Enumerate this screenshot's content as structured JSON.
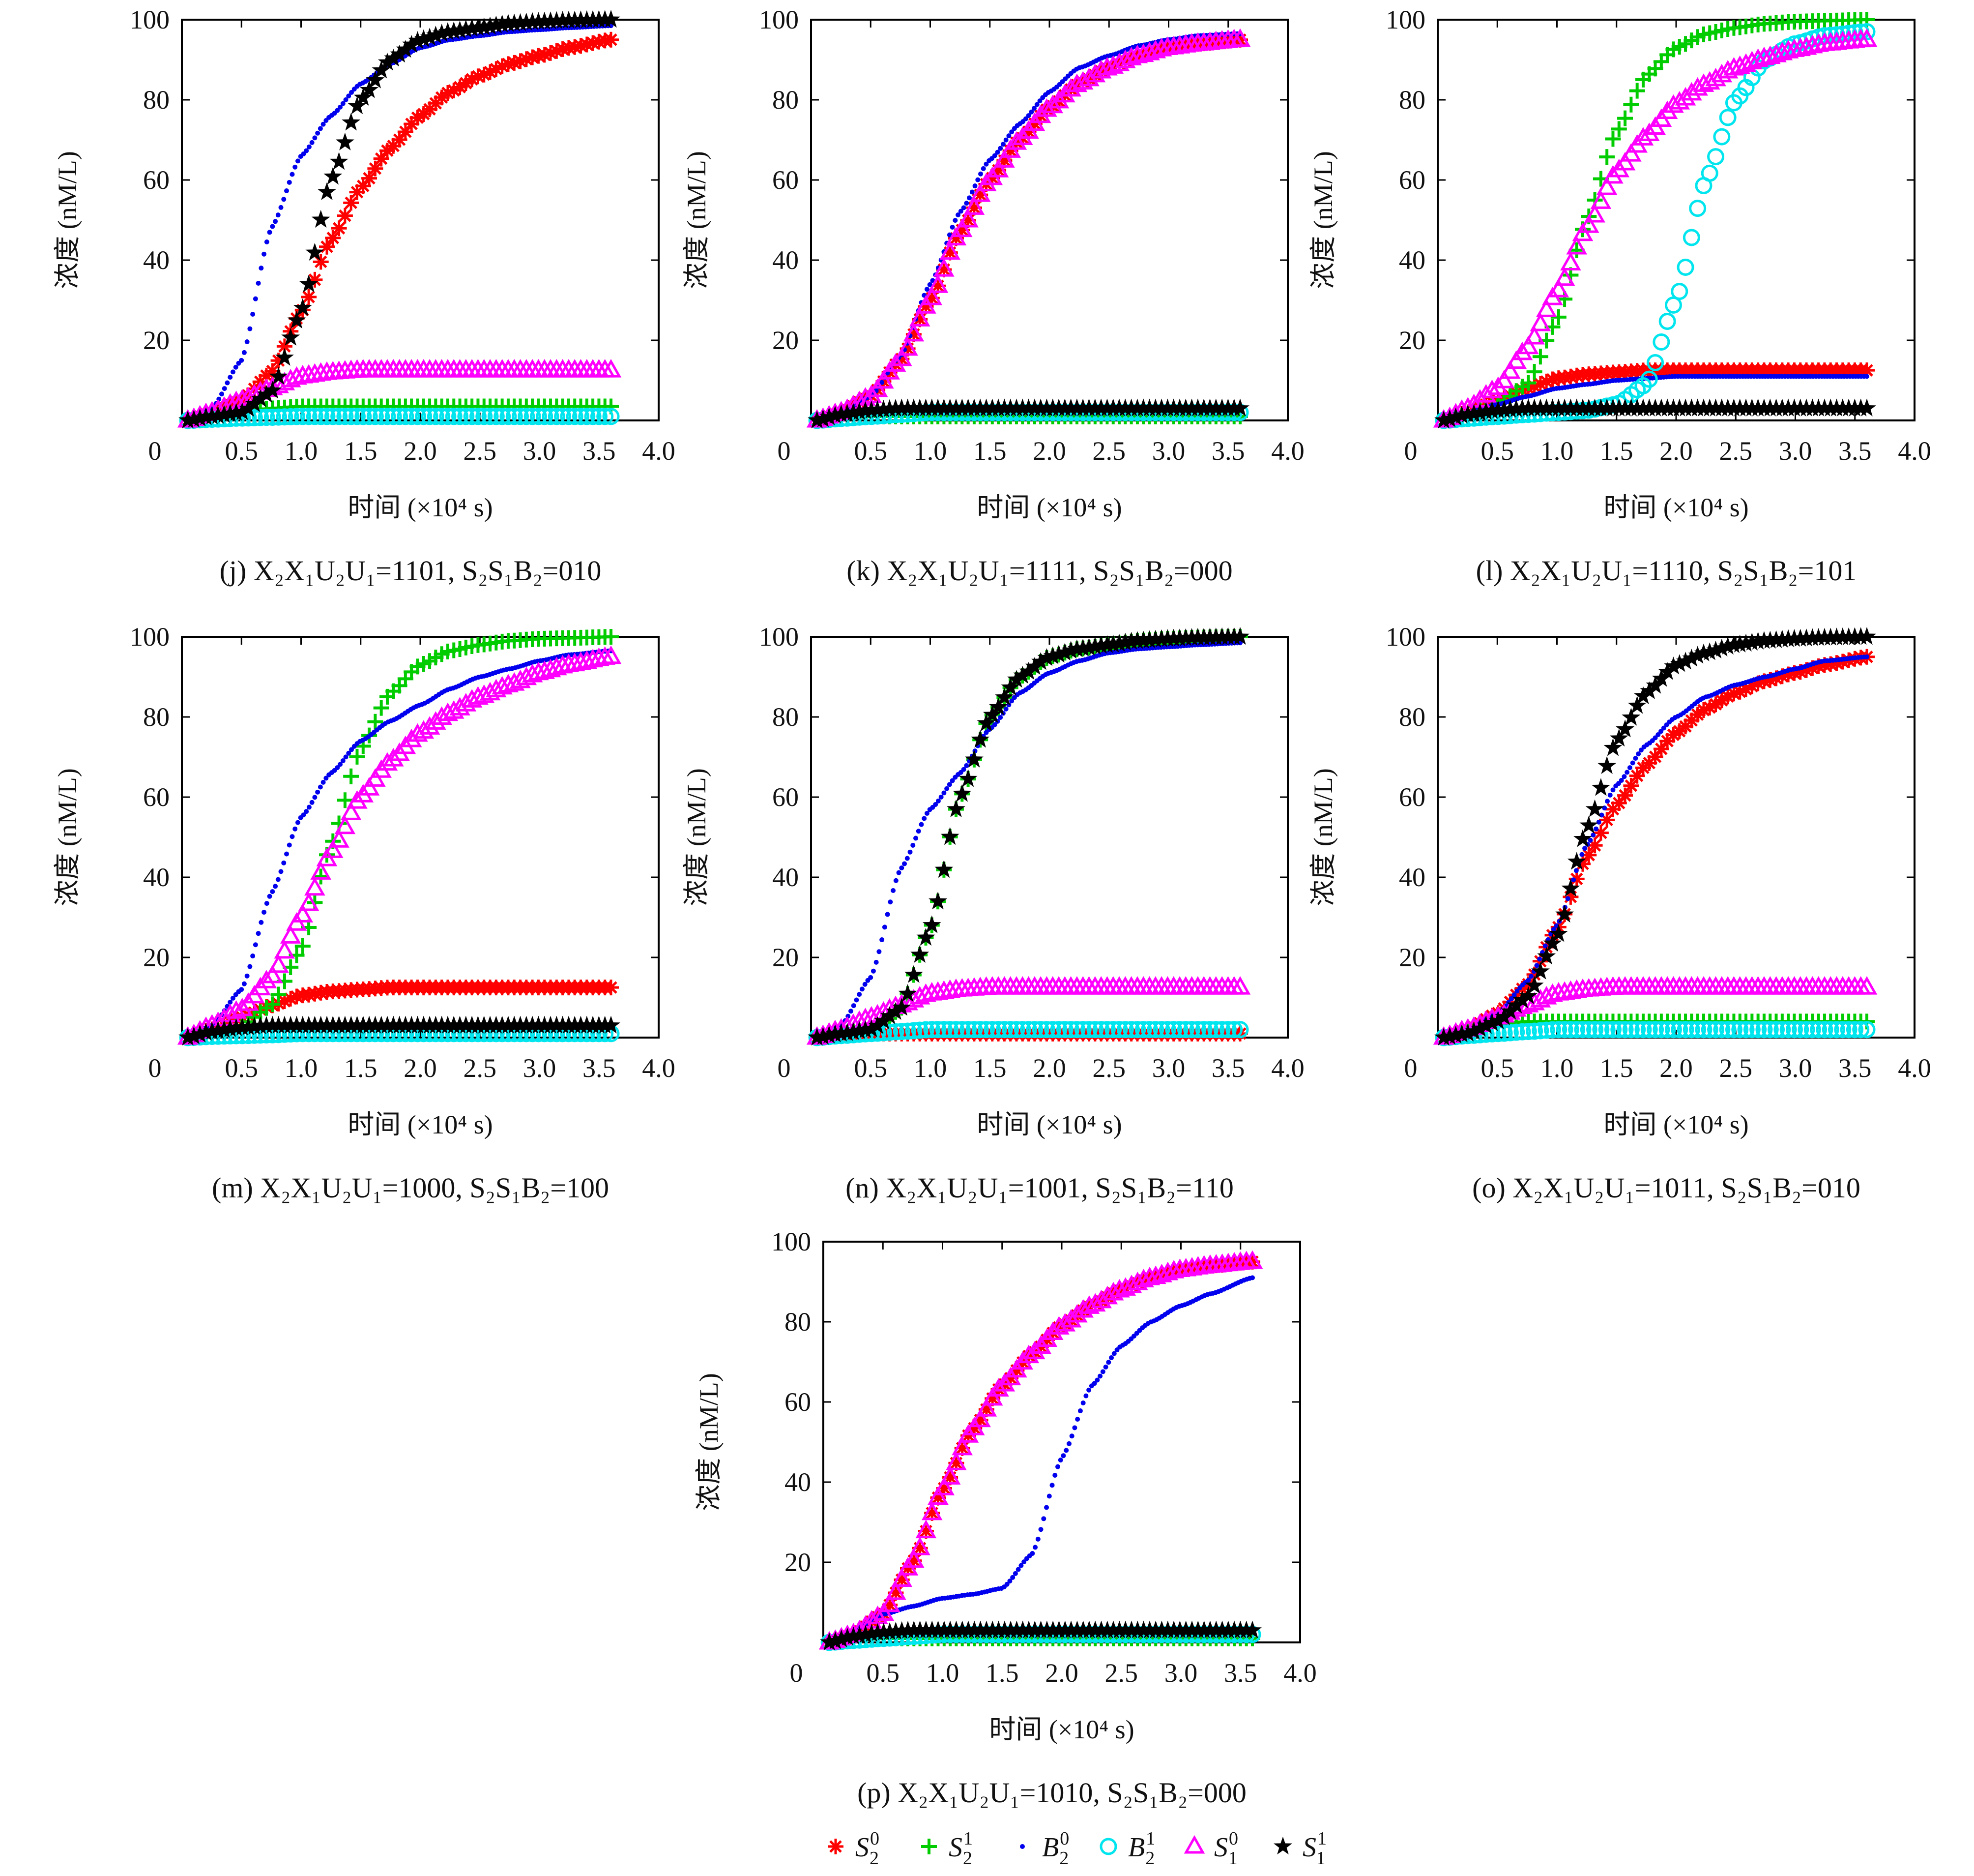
{
  "chart_data": [
    {
      "id": "j",
      "type": "line",
      "title": "(j) X₂X₁U₂U₁=1101, S₂S₁B₂=010",
      "xlabel": "时间 (×10⁴ s)",
      "ylabel": "浓度 (nM/L)",
      "xlim": [
        0,
        4.0
      ],
      "ylim": [
        0,
        100
      ],
      "xticks": [
        "0",
        "0.5",
        "1.0",
        "1.5",
        "2.0",
        "2.5",
        "3.0",
        "3.5",
        "4.0"
      ],
      "yticks": [
        "20",
        "40",
        "60",
        "80",
        "100"
      ],
      "x": [
        0.05,
        0.25,
        0.5,
        0.75,
        1.0,
        1.25,
        1.5,
        1.75,
        2.0,
        2.25,
        2.5,
        2.75,
        3.0,
        3.25,
        3.6
      ],
      "series": [
        {
          "name": "S20",
          "values": [
            0,
            2,
            5,
            12,
            27,
            45,
            58,
            68,
            76,
            82,
            86,
            89,
            91,
            93,
            95
          ]
        },
        {
          "name": "S21",
          "values": [
            0,
            1,
            2,
            3,
            3.5,
            3.5,
            3.5,
            3.5,
            3.5,
            3.5,
            3.5,
            3.5,
            3.5,
            3.5,
            3.5
          ]
        },
        {
          "name": "B20",
          "values": [
            0,
            3,
            15,
            48,
            66,
            76,
            84,
            89,
            93,
            95,
            96,
            97,
            97.5,
            98,
            98.5
          ]
        },
        {
          "name": "B21",
          "values": [
            0,
            0.3,
            0.6,
            0.8,
            1,
            1,
            1,
            1,
            1,
            1,
            1,
            1,
            1,
            1,
            1
          ]
        },
        {
          "name": "S10",
          "values": [
            0,
            2,
            5,
            8,
            11,
            12,
            12.5,
            12.5,
            12.5,
            12.5,
            12.5,
            12.5,
            12.5,
            12.5,
            12.5
          ]
        },
        {
          "name": "S11",
          "values": [
            0,
            1,
            2,
            7,
            27,
            60,
            80,
            90,
            95,
            97,
            98,
            99,
            99.5,
            99.8,
            100
          ]
        }
      ]
    },
    {
      "id": "k",
      "type": "line",
      "title": "(k) X₂X₁U₂U₁=1111, S₂S₁B₂=000",
      "xlabel": "时间 (×10⁴ s)",
      "ylabel": "浓度 (nM/L)",
      "xlim": [
        0,
        4.0
      ],
      "ylim": [
        0,
        100
      ],
      "xticks": [
        "0",
        "0.5",
        "1.0",
        "1.5",
        "2.0",
        "2.5",
        "3.0",
        "3.5",
        "4.0"
      ],
      "yticks": [
        "20",
        "40",
        "60",
        "80",
        "100"
      ],
      "x": [
        0.05,
        0.25,
        0.5,
        0.75,
        1.0,
        1.25,
        1.5,
        1.75,
        2.0,
        2.25,
        2.5,
        2.75,
        3.0,
        3.25,
        3.6
      ],
      "series": [
        {
          "name": "S20",
          "values": [
            0,
            2,
            6,
            15,
            30,
            47,
            60,
            70,
            78,
            84,
            88,
            91,
            93,
            94,
            95
          ]
        },
        {
          "name": "S21",
          "values": [
            0,
            0.5,
            1,
            1,
            1,
            1,
            1,
            1,
            1,
            1,
            1,
            1,
            1,
            1,
            1
          ]
        },
        {
          "name": "B20",
          "values": [
            0,
            2,
            6,
            16,
            34,
            52,
            65,
            74,
            82,
            88,
            91,
            93.5,
            95,
            96,
            96.5
          ]
        },
        {
          "name": "B21",
          "values": [
            0,
            0.5,
            1,
            1.5,
            2,
            2,
            2,
            2,
            2,
            2,
            2,
            2,
            2,
            2,
            2
          ]
        },
        {
          "name": "S10",
          "values": [
            0,
            2,
            6,
            15,
            30,
            47,
            60,
            70,
            78,
            84,
            88,
            91,
            93,
            94,
            95
          ]
        },
        {
          "name": "S11",
          "values": [
            0,
            1.5,
            2.5,
            3,
            3,
            3,
            3,
            3,
            3,
            3,
            3,
            3,
            3,
            3,
            3
          ]
        }
      ]
    },
    {
      "id": "l",
      "type": "line",
      "title": "(l) X₂X₁U₂U₁=1110, S₂S₁B₂=101",
      "xlabel": "时间 (×10⁴ s)",
      "ylabel": "浓度 (nM/L)",
      "xlim": [
        0,
        4.0
      ],
      "ylim": [
        0,
        100
      ],
      "xticks": [
        "0",
        "0.5",
        "1.0",
        "1.5",
        "2.0",
        "2.5",
        "3.0",
        "3.5",
        "4.0"
      ],
      "yticks": [
        "20",
        "40",
        "60",
        "80",
        "100"
      ],
      "x": [
        0.05,
        0.25,
        0.5,
        0.75,
        1.0,
        1.25,
        1.5,
        1.75,
        2.0,
        2.25,
        2.5,
        2.75,
        3.0,
        3.25,
        3.6
      ],
      "series": [
        {
          "name": "S20",
          "values": [
            0,
            2,
            5,
            8,
            10.5,
            11.5,
            12,
            12.5,
            12.5,
            12.5,
            12.5,
            12.5,
            12.5,
            12.5,
            12.5
          ]
        },
        {
          "name": "S21",
          "values": [
            0,
            1.5,
            4,
            9,
            25,
            50,
            72,
            86,
            93,
            96.5,
            98,
            99,
            99.5,
            99.7,
            100
          ]
        },
        {
          "name": "B20",
          "values": [
            0,
            2,
            4,
            6,
            8,
            9,
            10,
            10.5,
            11,
            11,
            11,
            11,
            11,
            11,
            11
          ]
        },
        {
          "name": "B21",
          "values": [
            0,
            0.5,
            1,
            1.5,
            2,
            2.5,
            4,
            9,
            30,
            60,
            80,
            90,
            94,
            96,
            97
          ]
        },
        {
          "name": "S10",
          "values": [
            0,
            3,
            8,
            18,
            32,
            48,
            62,
            71,
            79,
            84,
            88,
            90.5,
            92.5,
            94,
            95
          ]
        },
        {
          "name": "S11",
          "values": [
            0,
            1.5,
            2.5,
            3,
            3,
            3,
            3,
            3,
            3,
            3,
            3,
            3,
            3,
            3,
            3
          ]
        }
      ]
    },
    {
      "id": "m",
      "type": "line",
      "title": "(m) X₂X₁U₂U₁=1000, S₂S₁B₂=100",
      "xlabel": "时间 (×10⁴ s)",
      "ylabel": "浓度 (nM/L)",
      "xlim": [
        0,
        4.0
      ],
      "ylim": [
        0,
        100
      ],
      "xticks": [
        "0",
        "0.5",
        "1.0",
        "1.5",
        "2.0",
        "2.5",
        "3.0",
        "3.5",
        "4.0"
      ],
      "yticks": [
        "20",
        "40",
        "60",
        "80",
        "100"
      ],
      "x": [
        0.05,
        0.25,
        0.5,
        0.75,
        1.0,
        1.25,
        1.5,
        1.75,
        2.0,
        2.25,
        2.5,
        2.75,
        3.0,
        3.25,
        3.6
      ],
      "series": [
        {
          "name": "S20",
          "values": [
            0,
            2,
            5,
            8,
            10.5,
            11.5,
            12,
            12.5,
            12.5,
            12.5,
            12.5,
            12.5,
            12.5,
            12.5,
            12.5
          ]
        },
        {
          "name": "S21",
          "values": [
            0,
            1,
            3,
            8,
            22,
            48,
            72,
            86,
            93,
            96.5,
            98,
            99,
            99.5,
            99.7,
            100
          ]
        },
        {
          "name": "B20",
          "values": [
            0,
            3,
            12,
            36,
            55,
            66,
            74,
            79,
            83,
            87,
            90,
            92,
            94,
            95.5,
            96.5
          ]
        },
        {
          "name": "B21",
          "values": [
            0,
            0.3,
            0.5,
            0.7,
            1,
            1,
            1,
            1,
            1,
            1,
            1,
            1,
            1,
            1,
            1
          ]
        },
        {
          "name": "S10",
          "values": [
            0,
            3,
            7,
            15,
            30,
            46,
            60,
            69,
            76,
            81,
            85,
            88,
            91,
            93,
            95
          ]
        },
        {
          "name": "S11",
          "values": [
            0,
            1.5,
            2.5,
            3,
            3,
            3,
            3,
            3,
            3,
            3,
            3,
            3,
            3,
            3,
            3
          ]
        }
      ]
    },
    {
      "id": "n",
      "type": "line",
      "title": "(n) X₂X₁U₂U₁=1001, S₂S₁B₂=110",
      "xlabel": "时间 (×10⁴ s)",
      "ylabel": "浓度 (nM/L)",
      "xlim": [
        0,
        4.0
      ],
      "ylim": [
        0,
        100
      ],
      "xticks": [
        "0",
        "0.5",
        "1.0",
        "1.5",
        "2.0",
        "2.5",
        "3.0",
        "3.5",
        "4.0"
      ],
      "yticks": [
        "20",
        "40",
        "60",
        "80",
        "100"
      ],
      "x": [
        0.05,
        0.25,
        0.5,
        0.75,
        1.0,
        1.25,
        1.5,
        1.75,
        2.0,
        2.25,
        2.5,
        2.75,
        3.0,
        3.25,
        3.6
      ],
      "series": [
        {
          "name": "S20",
          "values": [
            0,
            0.5,
            1,
            1,
            1,
            1,
            1,
            1,
            1,
            1,
            1,
            1,
            1,
            1,
            1
          ]
        },
        {
          "name": "S21",
          "values": [
            0,
            1,
            2,
            7,
            27,
            60,
            80,
            90,
            95,
            97,
            98,
            99,
            99.5,
            99.8,
            100
          ]
        },
        {
          "name": "B20",
          "values": [
            0,
            3,
            15,
            42,
            57,
            66,
            77,
            86,
            91,
            94,
            96,
            97,
            97.5,
            98,
            98.5
          ]
        },
        {
          "name": "B21",
          "values": [
            0,
            0.5,
            1,
            1.5,
            2,
            2,
            2,
            2,
            2,
            2,
            2,
            2,
            2,
            2,
            2
          ]
        },
        {
          "name": "S10",
          "values": [
            0,
            2,
            5,
            8,
            11,
            12,
            12.5,
            12.5,
            12.5,
            12.5,
            12.5,
            12.5,
            12.5,
            12.5,
            12.5
          ]
        },
        {
          "name": "S11",
          "values": [
            0,
            1,
            2,
            7,
            27,
            60,
            80,
            90,
            95,
            97,
            98,
            99,
            99.5,
            99.8,
            100
          ]
        }
      ]
    },
    {
      "id": "o",
      "type": "line",
      "title": "(o) X₂X₁U₂U₁=1011, S₂S₁B₂=010",
      "xlabel": "时间 (×10⁴ s)",
      "ylabel": "浓度 (nM/L)",
      "xlim": [
        0,
        4.0
      ],
      "ylim": [
        0,
        100
      ],
      "xticks": [
        "0",
        "0.5",
        "1.0",
        "1.5",
        "2.0",
        "2.5",
        "3.0",
        "3.5",
        "4.0"
      ],
      "yticks": [
        "20",
        "40",
        "60",
        "80",
        "100"
      ],
      "x": [
        0.05,
        0.25,
        0.5,
        0.75,
        1.0,
        1.25,
        1.5,
        1.75,
        2.0,
        2.25,
        2.5,
        2.75,
        3.0,
        3.25,
        3.6
      ],
      "series": [
        {
          "name": "S20",
          "values": [
            0,
            2,
            6,
            13,
            27,
            45,
            58,
            68,
            76,
            82,
            86,
            89,
            91,
            93,
            95
          ]
        },
        {
          "name": "S21",
          "values": [
            0,
            1.5,
            3,
            4,
            4,
            4,
            4,
            4,
            4,
            4,
            4,
            4,
            4,
            4,
            4
          ]
        },
        {
          "name": "B20",
          "values": [
            0,
            2,
            6,
            14,
            28,
            48,
            63,
            73,
            80,
            85,
            88,
            90,
            92,
            94,
            95
          ]
        },
        {
          "name": "B21",
          "values": [
            0,
            0.5,
            1,
            1.5,
            2,
            2,
            2,
            2,
            2,
            2,
            2,
            2,
            2,
            2,
            2
          ]
        },
        {
          "name": "S10",
          "values": [
            0,
            2,
            5,
            8,
            11,
            12,
            12.5,
            12.5,
            12.5,
            12.5,
            12.5,
            12.5,
            12.5,
            12.5,
            12.5
          ]
        },
        {
          "name": "S11",
          "values": [
            0,
            1,
            4,
            10,
            25,
            52,
            74,
            86,
            93,
            96,
            98,
            99,
            99.5,
            99.8,
            100
          ]
        }
      ]
    },
    {
      "id": "p",
      "type": "line",
      "title": "(p) X₂X₁U₂U₁=1010, S₂S₁B₂=000",
      "xlabel": "时间 (×10⁴ s)",
      "ylabel": "浓度 (nM/L)",
      "xlim": [
        0,
        4.0
      ],
      "ylim": [
        0,
        100
      ],
      "xticks": [
        "0",
        "0.5",
        "1.0",
        "1.5",
        "2.0",
        "2.5",
        "3.0",
        "3.5",
        "4.0"
      ],
      "yticks": [
        "20",
        "40",
        "60",
        "80",
        "100"
      ],
      "x": [
        0.05,
        0.25,
        0.5,
        0.75,
        1.0,
        1.25,
        1.5,
        1.75,
        2.0,
        2.25,
        2.5,
        2.75,
        3.0,
        3.25,
        3.6
      ],
      "series": [
        {
          "name": "S20",
          "values": [
            0,
            2,
            7,
            20,
            38,
            53,
            64,
            72,
            79,
            84,
            88,
            91,
            93,
            94,
            95
          ]
        },
        {
          "name": "S21",
          "values": [
            0,
            0.5,
            1,
            1,
            1,
            1,
            1,
            1,
            1,
            1,
            1,
            1,
            1,
            1,
            1
          ]
        },
        {
          "name": "B20",
          "values": [
            0,
            3,
            7,
            9,
            11,
            12,
            13.5,
            22,
            46,
            64,
            74,
            80,
            84,
            87,
            91
          ]
        },
        {
          "name": "B21",
          "values": [
            0,
            0.5,
            1,
            1.5,
            2,
            2,
            2,
            2,
            2,
            2,
            2,
            2,
            2,
            2,
            2
          ]
        },
        {
          "name": "S10",
          "values": [
            0,
            2,
            7,
            20,
            38,
            53,
            64,
            72,
            79,
            84,
            88,
            91,
            93,
            94,
            95
          ]
        },
        {
          "name": "S11",
          "values": [
            0,
            1.5,
            2.5,
            3,
            3,
            3,
            3,
            3,
            3,
            3,
            3,
            3,
            3,
            3,
            3
          ]
        }
      ]
    }
  ],
  "legend": {
    "items": [
      {
        "key": "S20",
        "base": "S",
        "sub": "2",
        "sup": "0",
        "color": "#ff0000",
        "marker": "asterisk"
      },
      {
        "key": "S21",
        "base": "S",
        "sub": "2",
        "sup": "1",
        "color": "#00cc00",
        "marker": "plus"
      },
      {
        "key": "B20",
        "base": "B",
        "sub": "2",
        "sup": "0",
        "color": "#0000ee",
        "marker": "dot"
      },
      {
        "key": "B21",
        "base": "B",
        "sub": "2",
        "sup": "1",
        "color": "#00e5ee",
        "marker": "circle"
      },
      {
        "key": "S10",
        "base": "S",
        "sub": "1",
        "sup": "0",
        "color": "#ff00ff",
        "marker": "triangle"
      },
      {
        "key": "S11",
        "base": "S",
        "sub": "1",
        "sup": "1",
        "color": "#000000",
        "marker": "star"
      }
    ]
  }
}
